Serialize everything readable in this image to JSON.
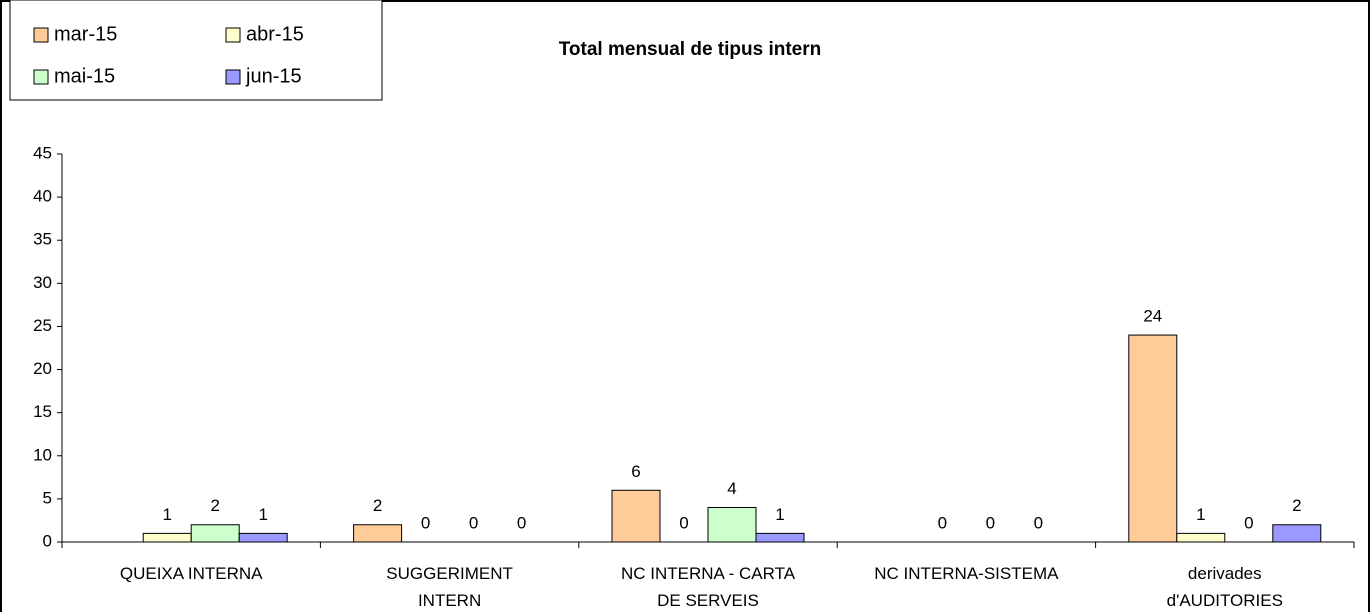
{
  "chart_data": {
    "type": "bar",
    "title": "Total mensual de tipus intern",
    "categories": [
      "QUEIXA INTERNA",
      "SUGGERIMENT\nINTERN",
      "NC INTERNA - CARTA\nDE SERVEIS",
      "NC INTERNA-SISTEMA",
      "derivades\nd'AUDITORIES"
    ],
    "series": [
      {
        "name": "mar-15",
        "color": "#FFCC99",
        "values": [
          null,
          2,
          6,
          null,
          24
        ]
      },
      {
        "name": "abr-15",
        "color": "#FFFFCC",
        "values": [
          1,
          0,
          0,
          0,
          1
        ]
      },
      {
        "name": "mai-15",
        "color": "#CCFFCC",
        "values": [
          2,
          0,
          4,
          0,
          0
        ]
      },
      {
        "name": "jun-15",
        "color": "#9999FF",
        "values": [
          1,
          0,
          1,
          0,
          2
        ]
      }
    ],
    "ylim": [
      0,
      45
    ],
    "yticks": [
      0,
      5,
      10,
      15,
      20,
      25,
      30,
      35,
      40,
      45
    ],
    "legend": "top-left",
    "grid": false
  }
}
